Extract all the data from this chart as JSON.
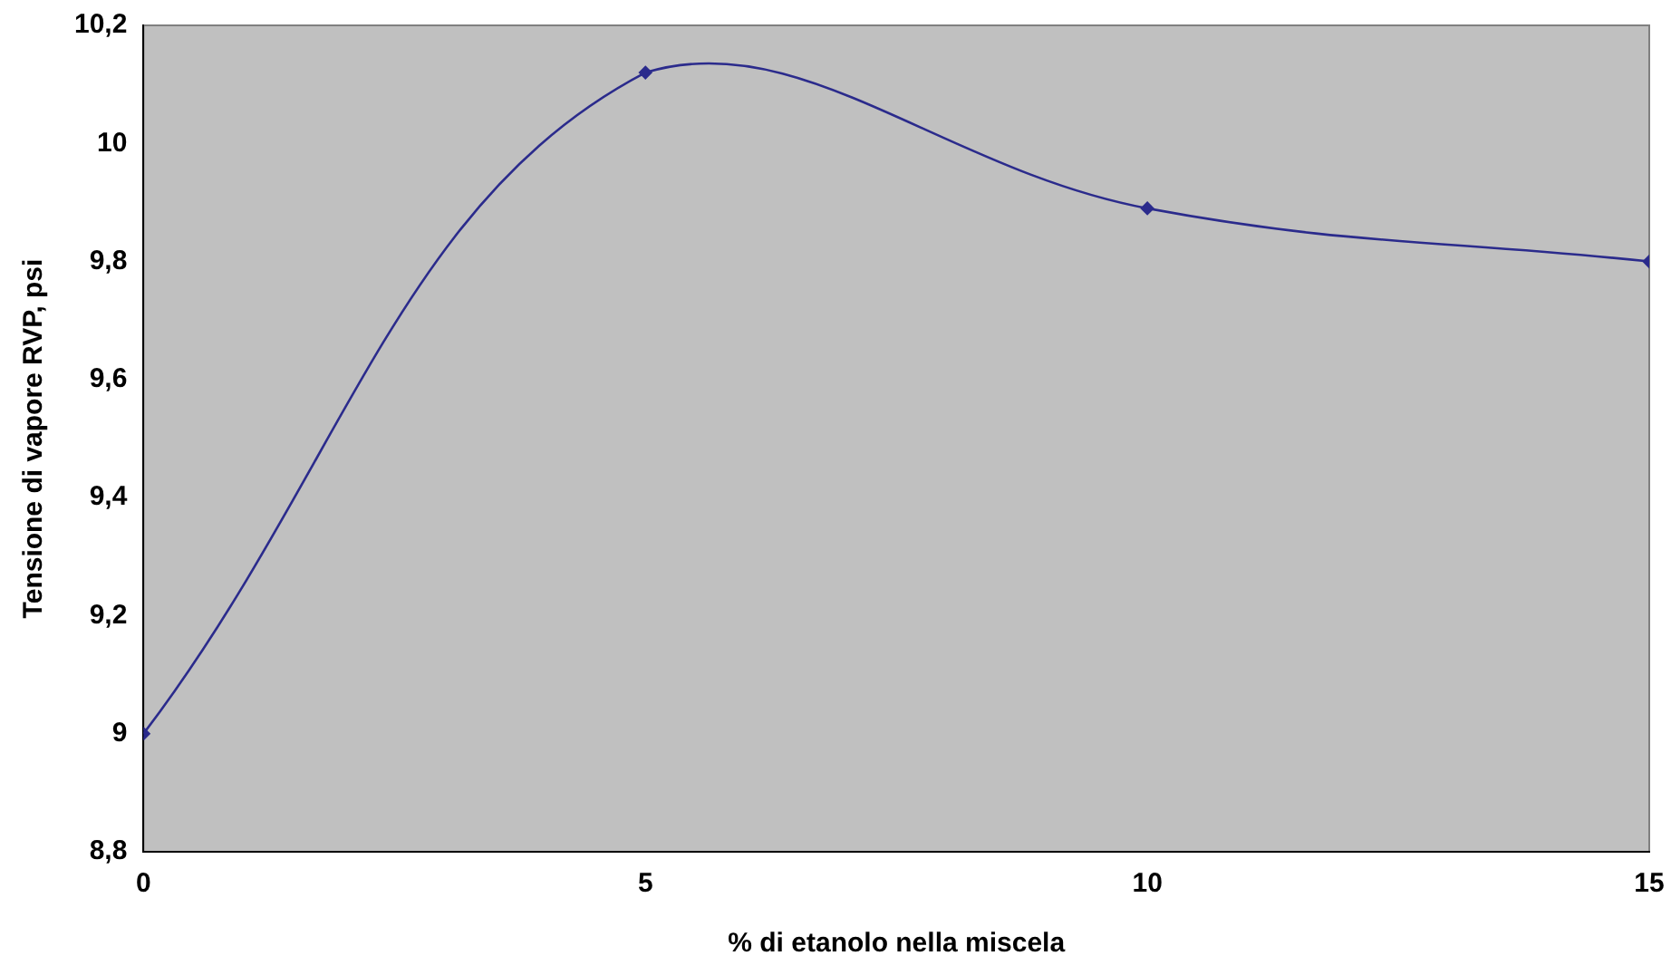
{
  "chart_data": {
    "type": "line",
    "xlabel": "% di etanolo nella miscela",
    "ylabel": "Tensione di vapore RVP, psi",
    "x": [
      0,
      5,
      10,
      15
    ],
    "series": [
      {
        "color": "#2b2b8c",
        "values": [
          9.0,
          10.12,
          9.89,
          9.8
        ]
      }
    ],
    "xlim": [
      0,
      15
    ],
    "xticks": [
      0,
      5,
      10,
      15
    ],
    "ylim": [
      8.8,
      10.2
    ],
    "yticks": [
      {
        "value": 8.8,
        "label": "8,8"
      },
      {
        "value": 9,
        "label": "9"
      },
      {
        "value": 9.2,
        "label": "9,2"
      },
      {
        "value": 9.4,
        "label": "9,4"
      },
      {
        "value": 9.6,
        "label": "9,6"
      },
      {
        "value": 9.8,
        "label": "9,8"
      },
      {
        "value": 10,
        "label": "10"
      },
      {
        "value": 10.2,
        "label": "10,2"
      }
    ],
    "grid": false,
    "legend": false,
    "marker": "diamond",
    "line_style": "solid"
  }
}
